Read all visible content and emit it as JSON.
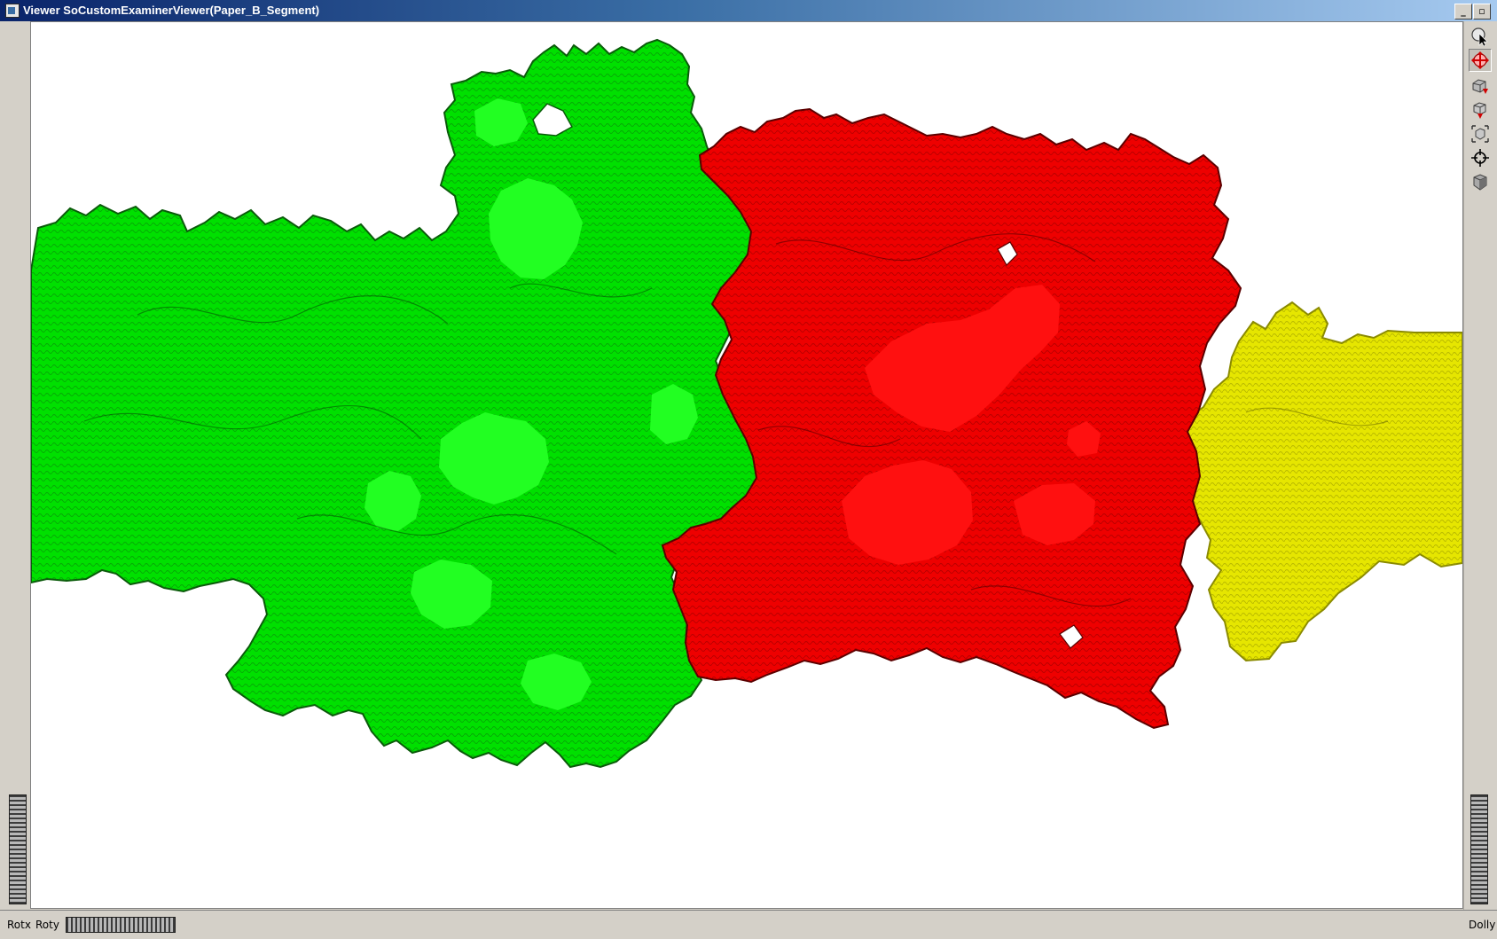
{
  "window": {
    "title": "Viewer SoCustomExaminerViewer(Paper_B_Segment)",
    "minimize_glyph": "_",
    "maximize_glyph": "▫",
    "close_glyph": "✕"
  },
  "toolbar": {
    "items": [
      {
        "name": "pick-mode",
        "icon": "pointer-arrow-icon"
      },
      {
        "name": "view-mode",
        "icon": "rotate-hand-icon",
        "active": true
      },
      {
        "name": "home",
        "icon": "home-camera-icon"
      },
      {
        "name": "set-home",
        "icon": "set-home-icon"
      },
      {
        "name": "view-all",
        "icon": "view-all-icon"
      },
      {
        "name": "seek",
        "icon": "seek-crosshair-icon"
      },
      {
        "name": "toggle-camera",
        "icon": "camera-type-icon"
      }
    ]
  },
  "bottom_bar": {
    "rotx_label": "Rotx",
    "roty_label": "Roty",
    "dolly_label": "Dolly"
  },
  "scene": {
    "background": "#ffffff",
    "segments": [
      {
        "name": "green-segment",
        "color": "#00e000",
        "highlight": "#22ff22"
      },
      {
        "name": "red-segment",
        "color": "#ee0000",
        "highlight": "#ff1010"
      },
      {
        "name": "yellow-segment",
        "color": "#e6e600",
        "highlight": "#f2f20a"
      }
    ]
  }
}
